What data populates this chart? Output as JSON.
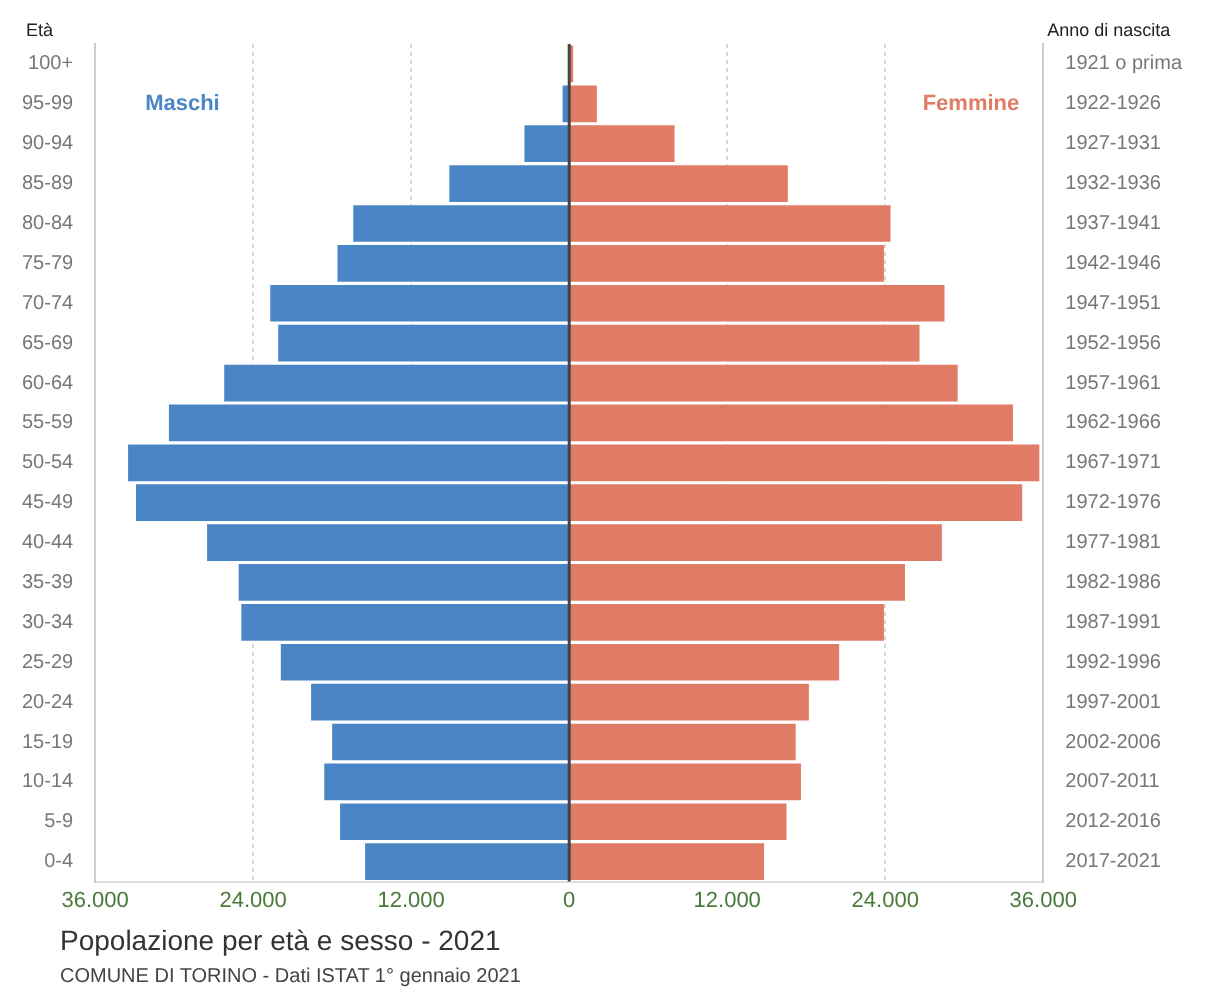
{
  "chart_data": {
    "type": "bar",
    "orientation": "horizontal",
    "stacked": true,
    "title": "Popolazione per età e sesso - 2021",
    "ylabel": "Età",
    "y2label": "Anno di nascita",
    "annotations": [
      "COMUNE DI TORINO - Dati ISTAT 1° gennaio 2021"
    ],
    "categories": [
      "100+",
      "95-99",
      "90-94",
      "85-89",
      "80-84",
      "75-79",
      "70-74",
      "65-69",
      "60-64",
      "55-59",
      "50-54",
      "45-49",
      "40-44",
      "35-39",
      "30-34",
      "25-29",
      "20-24",
      "15-19",
      "10-14",
      "5-9",
      "0-4"
    ],
    "y2_categories": [
      "1921 o prima",
      "1922-1926",
      "1927-1931",
      "1932-1936",
      "1937-1941",
      "1942-1946",
      "1947-1951",
      "1952-1956",
      "1957-1961",
      "1962-1966",
      "1967-1971",
      "1972-1976",
      "1977-1981",
      "1982-1986",
      "1987-1991",
      "1992-1996",
      "1997-2001",
      "2002-2006",
      "2007-2011",
      "2012-2016",
      "2017-2021"
    ],
    "series": [
      {
        "name": "Maschi",
        "color": "#4a86c5",
        "values": [
          null,
          -500,
          -3400,
          -9100,
          -16400,
          -17600,
          -22700,
          -22100,
          -26200,
          -30400,
          -33500,
          -32900,
          -27500,
          -25100,
          -24900,
          -21900,
          -19600,
          -18000,
          -18600,
          -17400,
          -15500
        ]
      },
      {
        "name": "Femmine",
        "color": "#e07b65",
        "values": [
          300,
          2100,
          8000,
          16600,
          24400,
          23900,
          28500,
          26600,
          29500,
          33700,
          35700,
          34400,
          28300,
          25500,
          23900,
          20500,
          18200,
          17200,
          17600,
          16500,
          14800
        ]
      }
    ],
    "xlim": [
      -36000,
      36000
    ],
    "xticks": [
      {
        "value": -36000,
        "label": "36.000"
      },
      {
        "value": -24000,
        "label": "24.000"
      },
      {
        "value": -12000,
        "label": "12.000"
      },
      0,
      {
        "value": 12000,
        "label": "12.000"
      },
      {
        "value": 24000,
        "label": "24.000"
      },
      {
        "value": 36000,
        "label": "36.000"
      }
    ],
    "grid": "x",
    "legend": false
  }
}
